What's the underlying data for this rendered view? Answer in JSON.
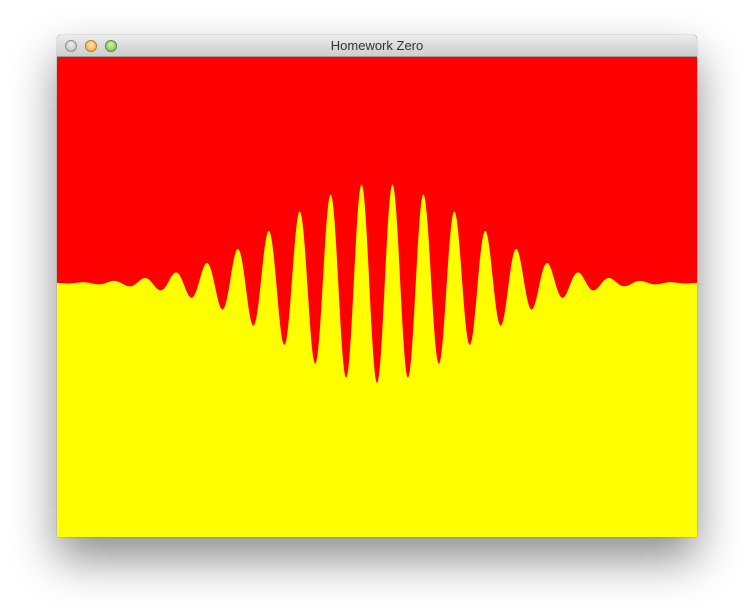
{
  "window": {
    "title": "Homework Zero"
  },
  "colors": {
    "top": "#ff0000",
    "bottom": "#ffff00"
  },
  "icons": {
    "close": "close-button-icon",
    "minimize": "minimize-button-icon",
    "zoom": "zoom-button-icon"
  }
}
